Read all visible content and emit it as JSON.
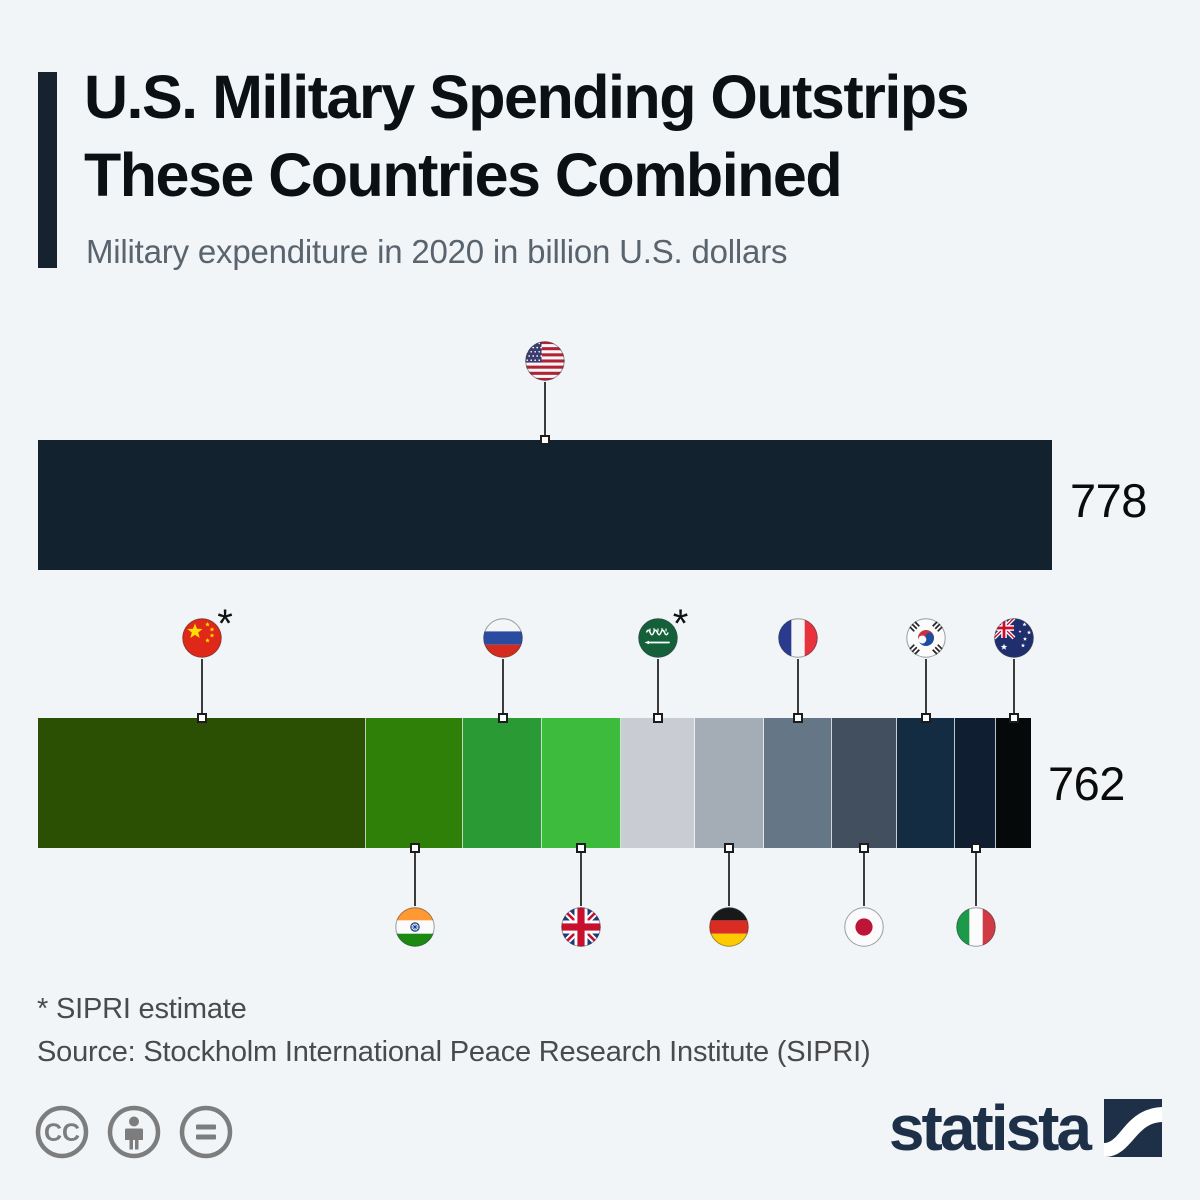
{
  "colors": {
    "background": "#f1f5f8",
    "accent_bar": "#16222e",
    "title_text": "#0b1015",
    "subtitle_text": "#59646e",
    "us_bar": "#13222f",
    "value_text": "#0b0b0b",
    "footer_text": "#4a4a4a",
    "license_icon": "#7d7d7d",
    "logo_navy": "#1e3048",
    "connector": "#3b3b3b"
  },
  "header": {
    "title_line1": "U.S. Military Spending Outstrips",
    "title_line2": "These Countries Combined",
    "subtitle": "Military expenditure in 2020 in billion U.S. dollars"
  },
  "chart_data": {
    "type": "bar",
    "orientation": "horizontal",
    "title": "U.S. Military Spending Outstrips These Countries Combined",
    "subtitle": "Military expenditure in 2020 in billion U.S. dollars",
    "unit": "billion U.S. dollars",
    "year": "2020",
    "estimate_marker": "*",
    "bars": [
      {
        "name": "United States",
        "flag": "us",
        "value": 778,
        "label": "778",
        "color": "#13222f",
        "flag_position": "above"
      },
      {
        "name": "Combined countries",
        "value": 762,
        "label": "762",
        "segments": [
          {
            "name": "China",
            "flag": "china",
            "value": 252,
            "estimate": true,
            "color": "#2b5004",
            "flag_position": "above"
          },
          {
            "name": "India",
            "flag": "india",
            "value": 74,
            "estimate": false,
            "color": "#2f8008",
            "flag_position": "below"
          },
          {
            "name": "Russia",
            "flag": "russia",
            "value": 61,
            "estimate": false,
            "color": "#2a9a35",
            "flag_position": "above"
          },
          {
            "name": "United Kingdom",
            "flag": "uk",
            "value": 60,
            "estimate": false,
            "color": "#3cbb3d",
            "flag_position": "below"
          },
          {
            "name": "Saudi Arabia",
            "flag": "saudi",
            "value": 57,
            "estimate": true,
            "color": "#c9ccd3",
            "flag_position": "above"
          },
          {
            "name": "Germany",
            "flag": "germany",
            "value": 53,
            "estimate": false,
            "color": "#a4acb5",
            "flag_position": "below"
          },
          {
            "name": "France",
            "flag": "france",
            "value": 52,
            "estimate": false,
            "color": "#657686",
            "flag_position": "above"
          },
          {
            "name": "Japan",
            "flag": "japan",
            "value": 50,
            "estimate": false,
            "color": "#414f5e",
            "flag_position": "below"
          },
          {
            "name": "South Korea",
            "flag": "south_korea",
            "value": 45,
            "estimate": false,
            "color": "#132c42",
            "flag_position": "above"
          },
          {
            "name": "Italy",
            "flag": "italy",
            "value": 31,
            "estimate": false,
            "color": "#101e31",
            "flag_position": "below"
          },
          {
            "name": "Australia",
            "flag": "australia",
            "value": 27,
            "estimate": false,
            "color": "#050909",
            "flag_position": "above"
          }
        ]
      }
    ]
  },
  "footer": {
    "footnote": "* SIPRI estimate",
    "source": "Source: Stockholm International Peace Research Institute (SIPRI)",
    "license_icons": [
      "cc-icon",
      "attribution-person-icon",
      "equals-icon"
    ],
    "cc_text": "CC",
    "logo_text": "statista"
  }
}
